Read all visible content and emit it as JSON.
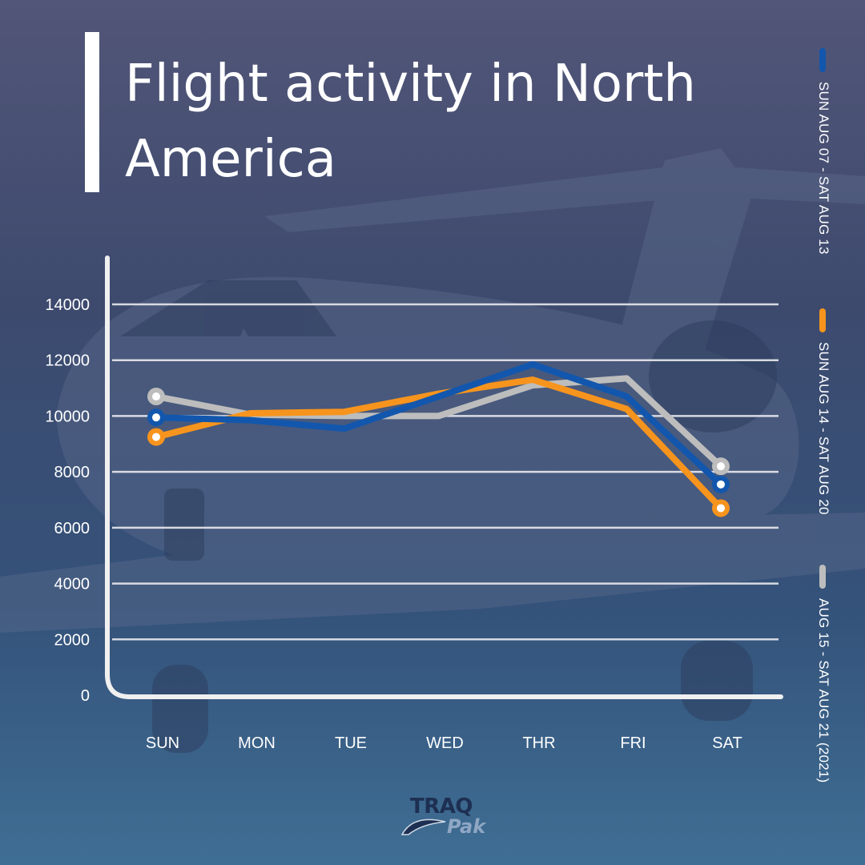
{
  "title": "Flight activity in North America",
  "colors": {
    "blue": "#1257ad",
    "orange": "#f7941d",
    "gray": "#bdbdbd",
    "axis": "#f0f0f0"
  },
  "logo": {
    "part1": "TRAQ",
    "part2": "Pak"
  },
  "background": {
    "image": "private-jet-photo"
  },
  "chart_data": {
    "type": "line",
    "title": "Flight activity in North America",
    "categories": [
      "SUN",
      "MON",
      "TUE",
      "WED",
      "THR",
      "FRI",
      "SAT"
    ],
    "yticks": [
      "0",
      "2000",
      "4000",
      "6000",
      "8000",
      "10000",
      "12000",
      "14000"
    ],
    "ylim": [
      0,
      15500
    ],
    "grid": true,
    "legend_position": "right, vertical",
    "series": [
      {
        "name": "SUN AUG 07 - SAT AUG 13",
        "color": "#1257ad",
        "values": [
          9950,
          9850,
          9550,
          10700,
          11850,
          10700,
          7550
        ]
      },
      {
        "name": "SUN AUG 14 - SAT AUG 20",
        "color": "#f7941d",
        "values": [
          9250,
          10100,
          10150,
          10800,
          11300,
          10250,
          6700
        ]
      },
      {
        "name": "AUG 15 - SAT AUG 21 (2021)",
        "color": "#bdbdbd",
        "values": [
          10700,
          10050,
          10000,
          10000,
          11100,
          11350,
          8200
        ]
      }
    ]
  }
}
